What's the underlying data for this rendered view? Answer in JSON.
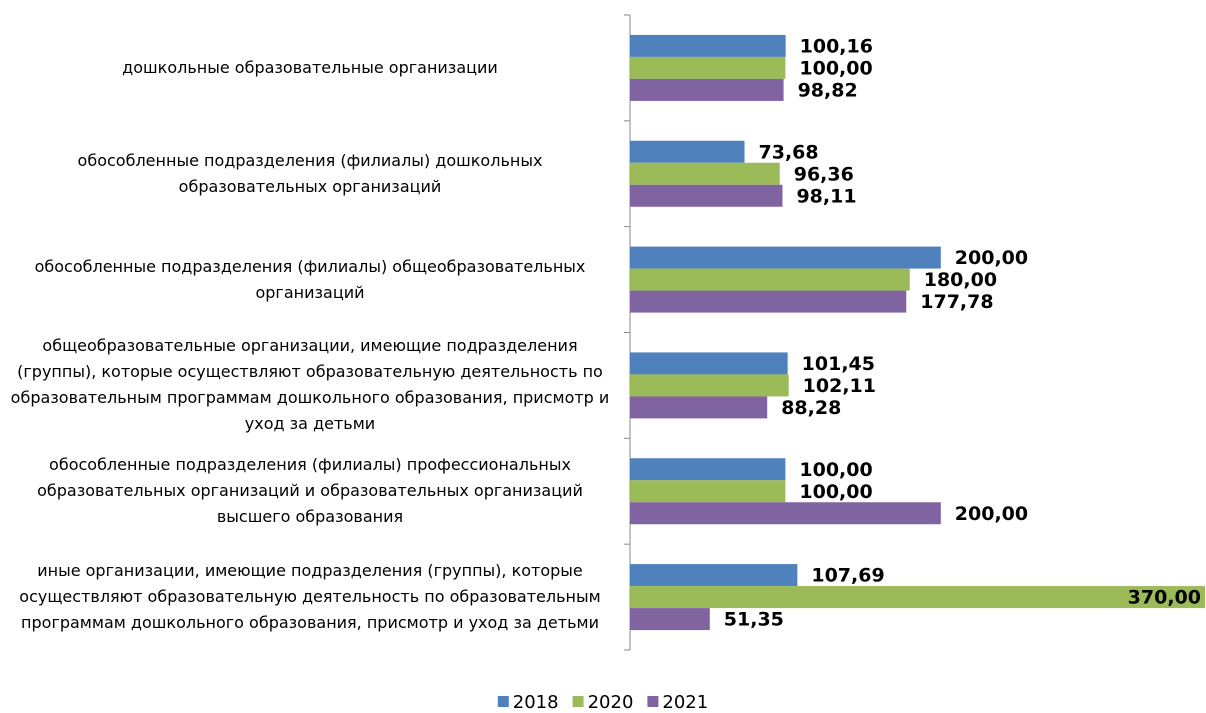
{
  "chart_data": {
    "type": "bar",
    "orientation": "horizontal",
    "categories": [
      "дошкольные образовательные организации",
      "обособленные подразделения (филиалы) дошкольных образовательных организаций",
      "обособленные подразделения (филиалы) общеобразовательных организаций",
      "общеобразовательные организации, имеющие подразделения (группы), которые осуществляют образовательную деятельность по образовательным программам дошкольного образования, присмотр и уход за детьми",
      "обособленные подразделения (филиалы) профессиональных образовательных организаций и образовательных организаций высшего образования",
      "иные организации, имеющие подразделения (группы), которые осуществляют образовательную деятельность по образовательным программам дошкольного образования, присмотр и уход за детьми"
    ],
    "series": [
      {
        "name": "2018",
        "color": "#4f81bd",
        "values": [
          100.16,
          73.68,
          200.0,
          101.45,
          100.0,
          107.69
        ],
        "value_labels": [
          "100,16",
          "73,68",
          "200,00",
          "101,45",
          "100,00",
          "107,69"
        ]
      },
      {
        "name": "2020",
        "color": "#9bbb59",
        "values": [
          100.0,
          96.36,
          180.0,
          102.11,
          100.0,
          370.0
        ],
        "value_labels": [
          "100,00",
          "96,36",
          "180,00",
          "102,11",
          "100,00",
          "370,00"
        ]
      },
      {
        "name": "2021",
        "color": "#8064a2",
        "values": [
          98.82,
          98.11,
          177.78,
          88.28,
          200.0,
          51.35
        ],
        "value_labels": [
          "98,82",
          "98,11",
          "177,78",
          "88,28",
          "200,00",
          "51,35"
        ]
      }
    ],
    "legend": "bottom"
  }
}
